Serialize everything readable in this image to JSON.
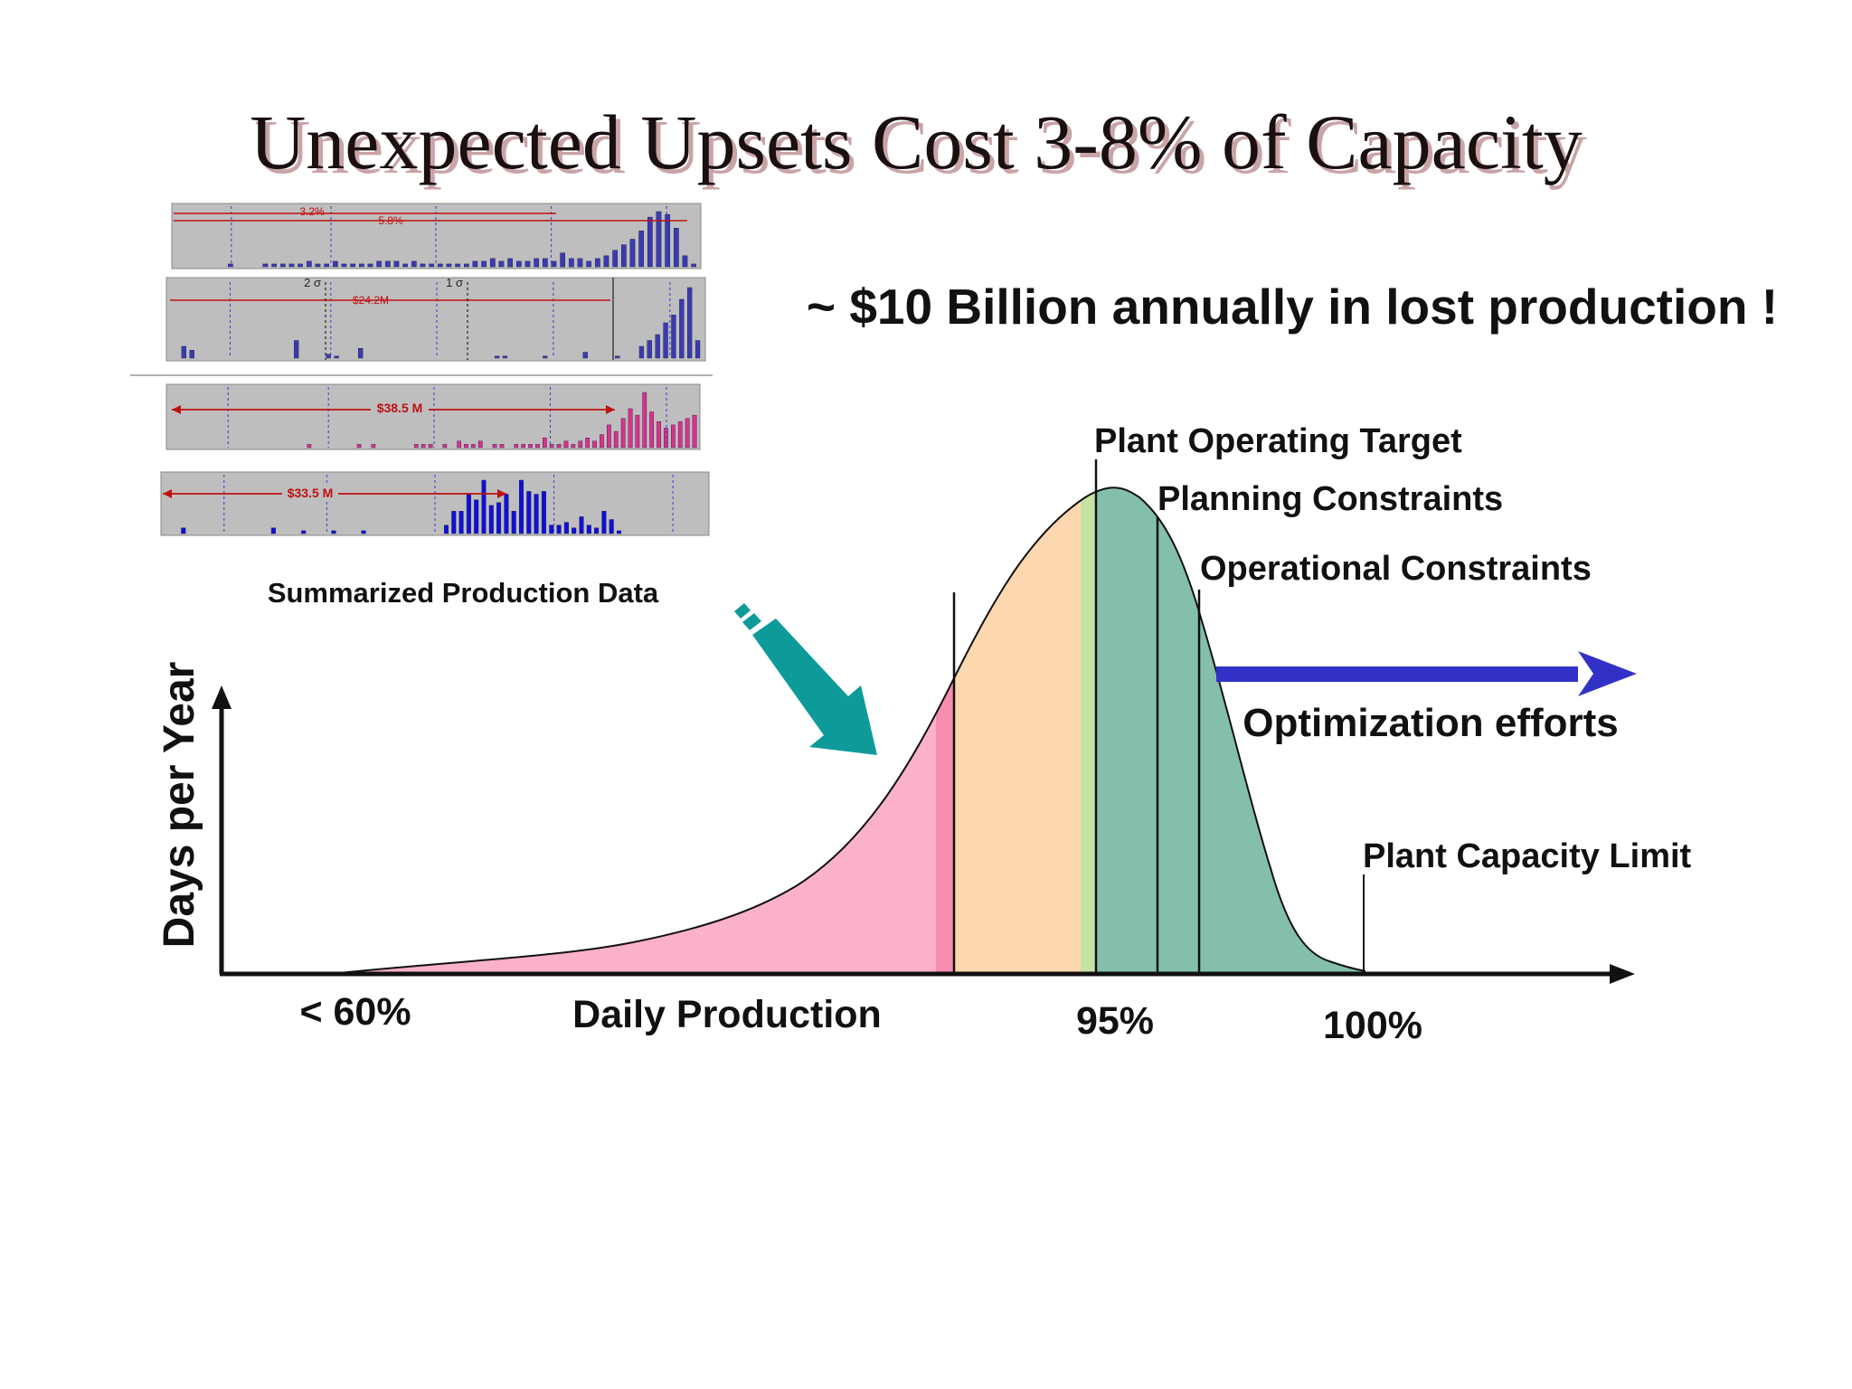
{
  "slide": {
    "title": "Unexpected Upsets Cost 3-8% of Capacity",
    "headline": "~ $10 Billion annually in lost production !"
  },
  "inset": {
    "caption": "Summarized Production Data",
    "panels": [
      {
        "bar_color": "#3b3bb0",
        "markers": [
          "3.2%",
          "5.8%"
        ],
        "values": [
          0,
          0,
          0,
          0,
          0,
          0,
          1,
          0,
          0,
          0,
          1,
          1,
          1,
          1,
          1,
          2,
          1,
          1,
          2,
          1,
          1,
          1,
          1,
          2,
          2,
          2,
          1,
          2,
          1,
          1,
          1,
          1,
          1,
          1,
          2,
          2,
          3,
          2,
          3,
          2,
          2,
          3,
          3,
          2,
          5,
          3,
          3,
          2,
          3,
          4,
          6,
          8,
          10,
          13,
          18,
          20,
          19,
          14,
          4,
          1
        ]
      },
      {
        "bar_color": "#3b3bb0",
        "markers": [
          "2 σ",
          "1 σ",
          "$24.2M"
        ],
        "values": [
          0,
          6,
          4,
          0,
          0,
          0,
          0,
          0,
          0,
          0,
          0,
          0,
          0,
          0,
          0,
          9,
          0,
          0,
          0,
          2,
          1,
          0,
          0,
          5,
          0,
          0,
          0,
          0,
          0,
          0,
          0,
          0,
          0,
          0,
          0,
          0,
          0,
          0,
          0,
          0,
          1,
          1,
          0,
          0,
          0,
          0,
          1,
          0,
          0,
          0,
          0,
          3,
          0,
          0,
          0,
          1,
          0,
          0,
          6,
          9,
          12,
          18,
          22,
          30,
          36,
          9
        ]
      },
      {
        "bar_color": "#e0308a",
        "markers": [
          "$38.5 M"
        ],
        "values": [
          0,
          0,
          0,
          0,
          0,
          0,
          0,
          0,
          0,
          0,
          0,
          0,
          0,
          0,
          0,
          0,
          0,
          0,
          0,
          1,
          0,
          0,
          0,
          0,
          0,
          0,
          1,
          0,
          1,
          0,
          0,
          0,
          0,
          0,
          1,
          1,
          1,
          0,
          1,
          0,
          2,
          1,
          1,
          2,
          0,
          1,
          1,
          0,
          1,
          1,
          1,
          1,
          3,
          1,
          1,
          2,
          1,
          2,
          3,
          2,
          4,
          7,
          5,
          9,
          12,
          10,
          17,
          11,
          8,
          6,
          7,
          8,
          9,
          10
        ]
      },
      {
        "bar_color": "#1010d8",
        "markers": [
          "$33.5 M"
        ],
        "values": [
          0,
          0,
          2,
          0,
          0,
          0,
          0,
          0,
          0,
          0,
          0,
          0,
          0,
          0,
          2,
          0,
          0,
          0,
          1,
          0,
          0,
          0,
          1,
          0,
          0,
          0,
          1,
          0,
          0,
          0,
          0,
          0,
          0,
          0,
          0,
          0,
          0,
          3,
          8,
          8,
          14,
          12,
          19,
          10,
          11,
          14,
          8,
          19,
          15,
          14,
          15,
          3,
          3,
          4,
          2,
          6,
          3,
          2,
          8,
          5,
          1,
          0,
          0,
          0,
          0,
          0,
          0,
          0,
          0,
          0,
          0,
          0
        ]
      }
    ]
  },
  "diagram": {
    "y_axis_label": "Days per Year",
    "x_axis_label": "Daily Production",
    "x_ticks": [
      "< 60%",
      "95%",
      "100%"
    ],
    "markers": {
      "operating_target": "Plant Operating Target",
      "planning": "Planning Constraints",
      "operational": "Operational Constraints",
      "capacity_limit": "Plant Capacity Limit"
    },
    "optimization_label": "Optimization efforts"
  },
  "colors": {
    "pink_region": "#fbb1cb",
    "pink_strip": "#f78db0",
    "orange_region": "#fdd7b0",
    "lightgreen_strip": "#c5e1a4",
    "teal_region": "#84bfae",
    "teal_arrow": "#0f9a9a",
    "blue_arrow": "#3131c8",
    "title_shadow": "#c9a4a6"
  }
}
